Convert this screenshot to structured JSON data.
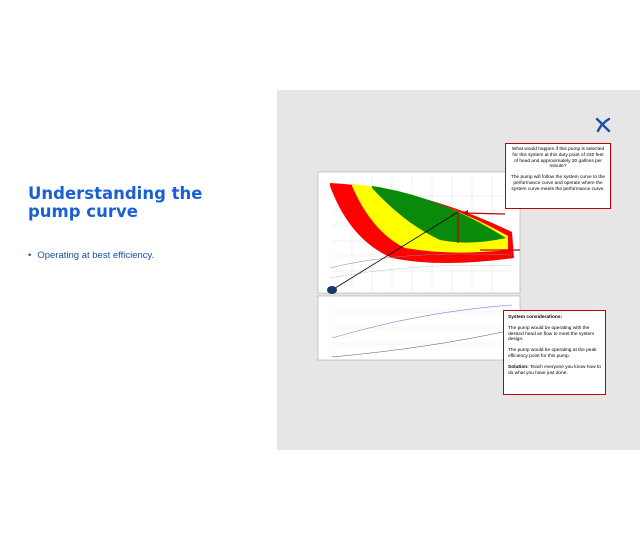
{
  "slide": {
    "title": "Understanding the pump curve",
    "bullets": [
      "Operating at best efficiency."
    ],
    "callouts": [
      {
        "paragraphs": [
          "What would happen if this pump is selected for this system at this duty point of 230 feet of head and approximately 30 gallons per minute?",
          "The pump will follow the system curve to the performance curve and operate where the system curve meets the performance curve."
        ]
      },
      {
        "heading": "System considerations:",
        "paragraphs": [
          "The pump would be operating  with the desired head an flow to meet the system design.",
          "The pump would be operating at the peak  efficiency point for this pump."
        ],
        "solution_label": "Solution:",
        "solution_text": " Teach everyone you know how to do what you have just done."
      }
    ]
  }
}
